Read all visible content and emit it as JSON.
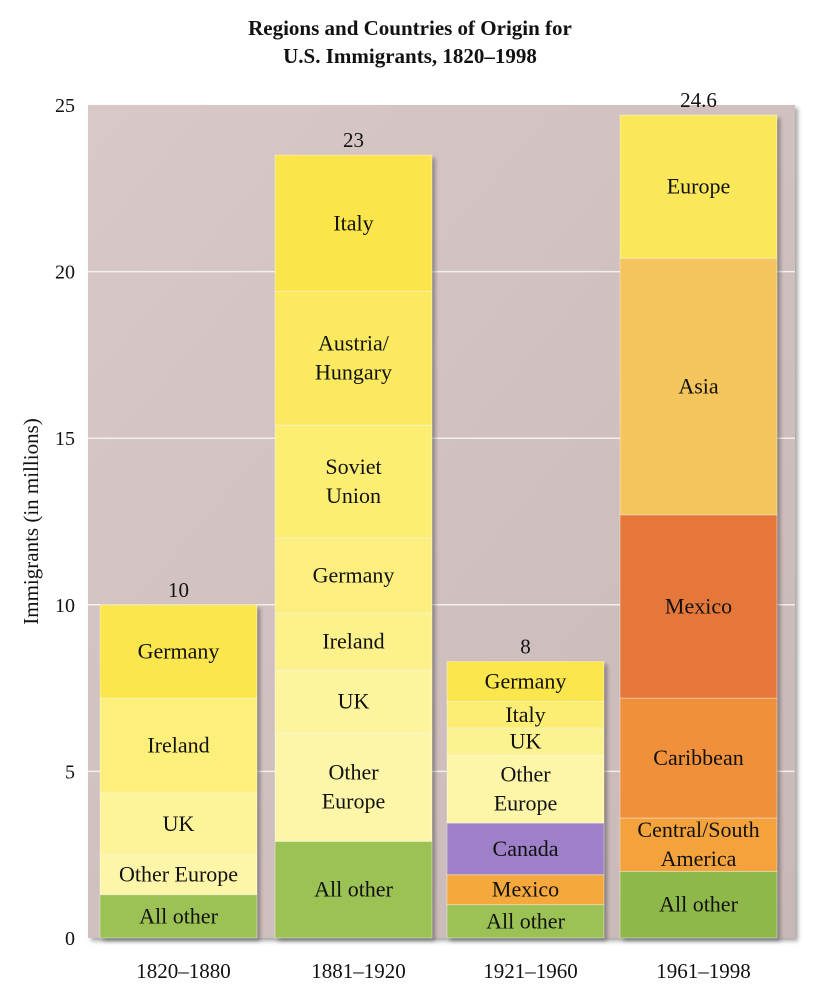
{
  "chart_data": {
    "type": "bar",
    "stacked": true,
    "title": "Regions and Countries of Origin for\nU.S. Immigrants, 1820–1998",
    "xlabel": "",
    "ylabel": "Immigrants (in millions)",
    "ylim": [
      0,
      25
    ],
    "yticks": [
      0,
      5,
      10,
      15,
      20,
      25
    ],
    "grid": true,
    "categories": [
      "1820–1880",
      "1881–1920",
      "1921–1960",
      "1961–1998"
    ],
    "totals": [
      "10",
      "23",
      "8",
      "24.6"
    ],
    "bars": [
      {
        "category": "1820–1880",
        "segments": [
          {
            "name": "All other",
            "value": 1.3,
            "color": "#9cc255"
          },
          {
            "name": "Other Europe",
            "value": 1.2,
            "color": "#fdf6a8"
          },
          {
            "name": "UK",
            "value": 1.85,
            "color": "#fdf49a"
          },
          {
            "name": "Ireland",
            "value": 2.85,
            "color": "#fcf07a"
          },
          {
            "name": "Germany",
            "value": 2.8,
            "color": "#fbe64e"
          }
        ]
      },
      {
        "category": "1881–1920",
        "segments": [
          {
            "name": "All other",
            "value": 2.9,
            "color": "#9cc255"
          },
          {
            "name": "Other\nEurope",
            "value": 3.25,
            "color": "#fdf6a8"
          },
          {
            "name": "UK",
            "value": 1.9,
            "color": "#fdf49e"
          },
          {
            "name": "Ireland",
            "value": 1.7,
            "color": "#fcf18a"
          },
          {
            "name": "Germany",
            "value": 2.25,
            "color": "#fcef80"
          },
          {
            "name": "Soviet\nUnion",
            "value": 3.4,
            "color": "#fcee72"
          },
          {
            "name": "Austria/\nHungary",
            "value": 4.0,
            "color": "#fbea60"
          },
          {
            "name": "Italy",
            "value": 4.1,
            "color": "#fbe54a"
          }
        ]
      },
      {
        "category": "1921–1960",
        "segments": [
          {
            "name": "All other",
            "value": 1.0,
            "color": "#9cc255"
          },
          {
            "name": "Mexico",
            "value": 0.9,
            "color": "#f5a83c"
          },
          {
            "name": "Canada",
            "value": 1.55,
            "color": "#9d80c8"
          },
          {
            "name": "Other\nEurope",
            "value": 2.05,
            "color": "#fdf6a8"
          },
          {
            "name": "UK",
            "value": 0.8,
            "color": "#fcf290"
          },
          {
            "name": "Italy",
            "value": 0.8,
            "color": "#fcee74"
          },
          {
            "name": "Germany",
            "value": 1.2,
            "color": "#fbe64e"
          }
        ]
      },
      {
        "category": "1961–1998",
        "segments": [
          {
            "name": "All other",
            "value": 2.0,
            "color": "#8fb84a"
          },
          {
            "name": "Central/South\nAmerica",
            "value": 1.6,
            "color": "#f4a23c"
          },
          {
            "name": "Caribbean",
            "value": 3.6,
            "color": "#f0903a"
          },
          {
            "name": "Mexico",
            "value": 5.5,
            "color": "#e6773a"
          },
          {
            "name": "Asia",
            "value": 7.7,
            "color": "#f3c55c"
          },
          {
            "name": "Europe",
            "value": 4.3,
            "color": "#fbe85a"
          }
        ]
      }
    ]
  }
}
